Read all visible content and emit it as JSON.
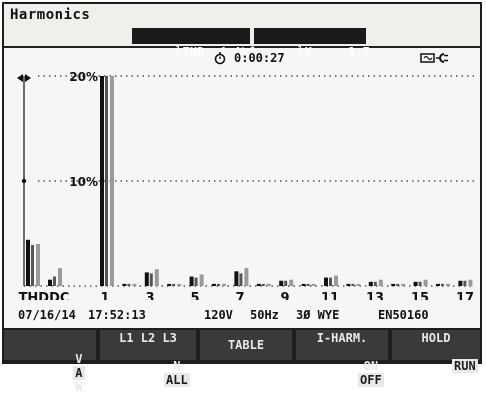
{
  "header": {
    "title": "Harmonics",
    "thd": {
      "phase": "1",
      "label": "THD",
      "value": "4.4",
      "unit": "%f"
    },
    "k": {
      "phase": "1",
      "label": "K",
      "value": "1.7"
    },
    "timer": "0:00:27",
    "icons": [
      "stopwatch-icon",
      "power-plug-icon"
    ]
  },
  "chart_data": {
    "type": "bar",
    "ylabel_ticks": [
      "20%",
      "10%"
    ],
    "ylim": [
      0,
      20
    ],
    "x_tick_labels": [
      "THDDC",
      "1",
      "3",
      "5",
      "7",
      "9",
      "11",
      "13",
      "15",
      "17"
    ],
    "categories": [
      "THD",
      "DC",
      "1",
      "2",
      "3",
      "4",
      "5",
      "6",
      "7",
      "8",
      "9",
      "10",
      "11",
      "12",
      "13",
      "14",
      "15",
      "16",
      "17",
      "18",
      "19"
    ],
    "series": [
      {
        "values": [
          4.4,
          0.6,
          20,
          0.2,
          1.3,
          0.2,
          0.9,
          0.2,
          1.4,
          0.2,
          0.5,
          0.2,
          0.8,
          0.2,
          0.4,
          0.2,
          0.4,
          0.2,
          0.5,
          0.2,
          0.5
        ]
      },
      {
        "values": [
          3.9,
          0.9,
          20,
          0.2,
          1.2,
          0.2,
          0.8,
          0.2,
          1.2,
          0.2,
          0.5,
          0.2,
          0.8,
          0.2,
          0.4,
          0.2,
          0.4,
          0.2,
          0.5,
          0.2,
          0.5
        ]
      },
      {
        "values": [
          4.0,
          1.7,
          20,
          0.2,
          1.6,
          0.2,
          1.1,
          0.2,
          1.7,
          0.2,
          0.6,
          0.2,
          1.0,
          0.2,
          0.6,
          0.2,
          0.6,
          0.2,
          0.6,
          0.2,
          0.6
        ]
      }
    ],
    "colors": [
      "#111111",
      "#555555",
      "#9a9a9a"
    ],
    "grid": true
  },
  "status": {
    "date": "07/16/14",
    "time": "17:52:13",
    "voltage": "120V",
    "frequency": "50Hz",
    "config": "3Ø WYE",
    "standard": "EN50160"
  },
  "softkeys": {
    "vaw": {
      "options": [
        "V",
        "A",
        "W"
      ],
      "selected": "A"
    },
    "phases": {
      "top": "L1 L2 L3",
      "bottom_left": "N",
      "bottom_selected": "ALL"
    },
    "table": "TABLE",
    "iharm": {
      "top": "I-HARM.",
      "on": "ON",
      "off": "OFF"
    },
    "hold": {
      "top": "HOLD",
      "bottom": "RUN"
    }
  }
}
